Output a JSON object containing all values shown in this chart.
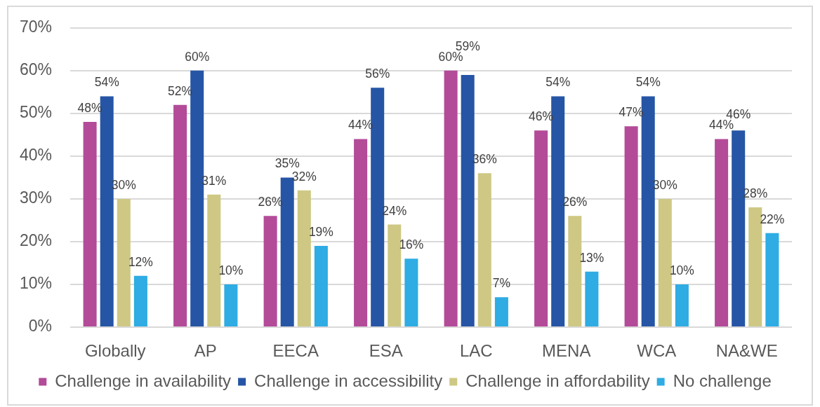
{
  "chart_data": {
    "type": "bar",
    "categories": [
      "Globally",
      "AP",
      "EECA",
      "ESA",
      "LAC",
      "MENA",
      "WCA",
      "NA&WE"
    ],
    "series": [
      {
        "name": "Challenge in availability",
        "color": "#b34b99",
        "values": [
          48,
          52,
          26,
          44,
          60,
          46,
          47,
          44
        ],
        "value_labels": [
          "48%",
          "52%",
          "26%",
          "44%",
          "60%",
          "46%",
          "47%",
          "44%"
        ]
      },
      {
        "name": "Challenge in accessibility",
        "color": "#2655a5",
        "values": [
          54,
          60,
          35,
          56,
          59,
          54,
          54,
          46
        ],
        "value_labels": [
          "54%",
          "60%",
          "35%",
          "56%",
          "59%",
          "54%",
          "54%",
          "46%"
        ]
      },
      {
        "name": "Challenge in affordability",
        "color": "#cec884",
        "values": [
          30,
          31,
          32,
          24,
          36,
          26,
          30,
          28
        ],
        "value_labels": [
          "30%",
          "31%",
          "32%",
          "24%",
          "36%",
          "26%",
          "30%",
          "28%"
        ]
      },
      {
        "name": "No challenge",
        "color": "#2eace3",
        "values": [
          12,
          10,
          19,
          16,
          7,
          13,
          10,
          22
        ],
        "value_labels": [
          "12%",
          "10%",
          "19%",
          "16%",
          "7%",
          "13%",
          "10%",
          "22%"
        ]
      }
    ],
    "ylim": [
      0,
      70
    ],
    "yticks": [
      {
        "value": 0,
        "label": "0%"
      },
      {
        "value": 10,
        "label": "10%"
      },
      {
        "value": 20,
        "label": "20%"
      },
      {
        "value": 30,
        "label": "30%"
      },
      {
        "value": 40,
        "label": "40%"
      },
      {
        "value": 50,
        "label": "50%"
      },
      {
        "value": 60,
        "label": "60%"
      },
      {
        "value": 70,
        "label": "70%"
      }
    ],
    "grid": "y",
    "legend": "bottom"
  }
}
